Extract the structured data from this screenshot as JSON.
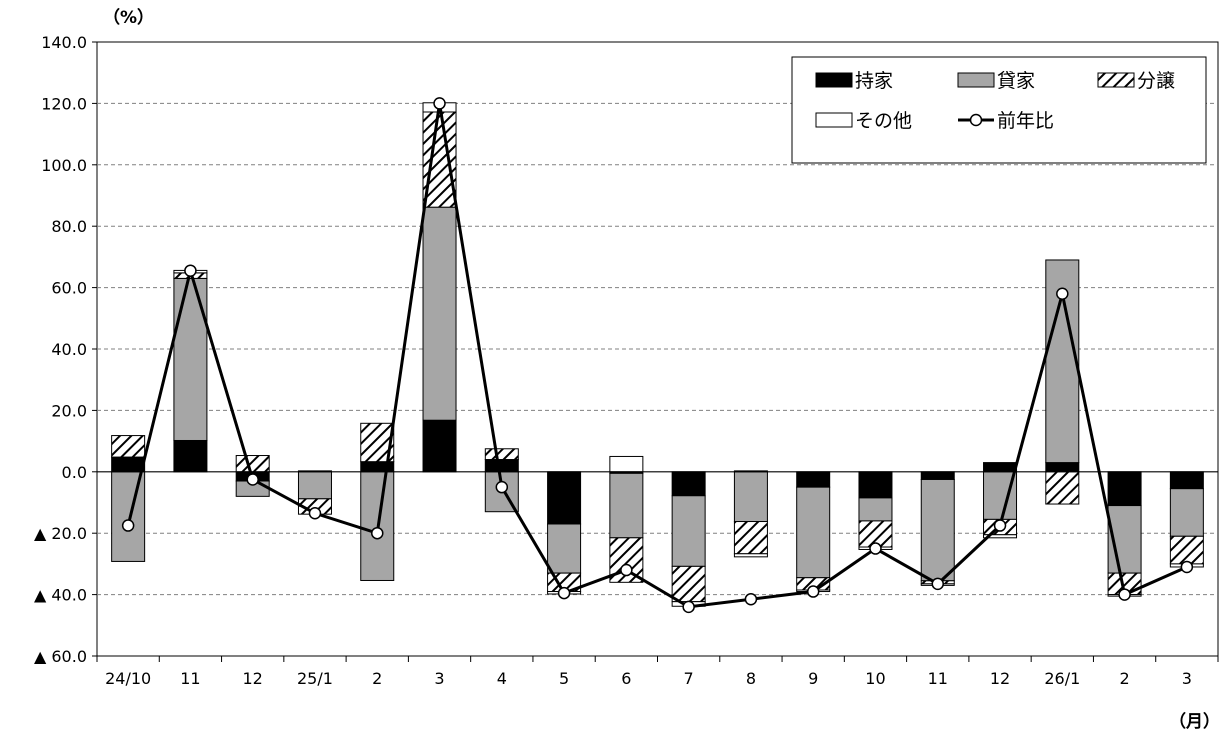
{
  "chart_data": {
    "type": "bar",
    "y_unit_label": "（%）",
    "x_unit_label": "（月）",
    "categories": [
      "24/10",
      "11",
      "12",
      "25/1",
      "2",
      "3",
      "4",
      "5",
      "6",
      "7",
      "8",
      "9",
      "10",
      "11",
      "12",
      "26/1",
      "2",
      "3"
    ],
    "ylim": [
      -60,
      140
    ],
    "yticks": [
      {
        "value": 140,
        "label": "140.0"
      },
      {
        "value": 120,
        "label": "120.0"
      },
      {
        "value": 100,
        "label": "100.0"
      },
      {
        "value": 80,
        "label": "80.0"
      },
      {
        "value": 60,
        "label": "60.0"
      },
      {
        "value": 40,
        "label": "40.0"
      },
      {
        "value": 20,
        "label": "20.0"
      },
      {
        "value": 0,
        "label": "0.0"
      },
      {
        "value": -20,
        "label": "▲ 20.0"
      },
      {
        "value": -40,
        "label": "▲ 40.0"
      },
      {
        "value": -60,
        "label": "▲ 60.0"
      }
    ],
    "grid": "horizontal-dashed",
    "legend_position": "top-right",
    "series": [
      {
        "name": "持家",
        "kind": "bar",
        "color": "#000000",
        "values": [
          4.8,
          10.2,
          -3.0,
          0.3,
          3.3,
          16.8,
          4.0,
          -17.0,
          -0.5,
          -7.8,
          0.3,
          -5.0,
          -8.5,
          -2.5,
          3.0,
          3.0,
          -11.0,
          -5.5
        ]
      },
      {
        "name": "貸家",
        "kind": "bar",
        "color": "#a6a6a6",
        "values": [
          -29.2,
          52.8,
          -5.0,
          -8.8,
          -35.4,
          69.4,
          -13.0,
          -16.0,
          -21.0,
          -23.0,
          -16.2,
          -29.5,
          -7.5,
          -33.0,
          -15.5,
          66.0,
          -22.0,
          -15.5
        ]
      },
      {
        "name": "分譲",
        "kind": "bar",
        "color": "#ffffff",
        "values": [
          7.0,
          1.8,
          5.3,
          -5.0,
          12.5,
          31.0,
          3.5,
          -6.0,
          -14.5,
          -11.5,
          -10.5,
          -4.0,
          -8.5,
          -1.0,
          -5.0,
          -10.5,
          -7.0,
          -9.0
        ]
      },
      {
        "name": "その他",
        "kind": "bar",
        "color": "#ffffff",
        "values": [
          0,
          0.8,
          0,
          0,
          0,
          3.0,
          0,
          -0.8,
          5.0,
          -1.5,
          -1.0,
          -0.5,
          -0.8,
          -0.5,
          -1.0,
          0,
          -0.5,
          -1.0
        ]
      },
      {
        "name": "前年比",
        "kind": "line",
        "color": "#000000",
        "values": [
          -17.5,
          65.5,
          -2.5,
          -13.5,
          -20.0,
          120.0,
          -5.0,
          -39.5,
          -32.0,
          -44.0,
          -41.5,
          -39.0,
          -25.0,
          -36.5,
          -17.5,
          58.0,
          -40.0,
          -31.0
        ]
      }
    ]
  }
}
